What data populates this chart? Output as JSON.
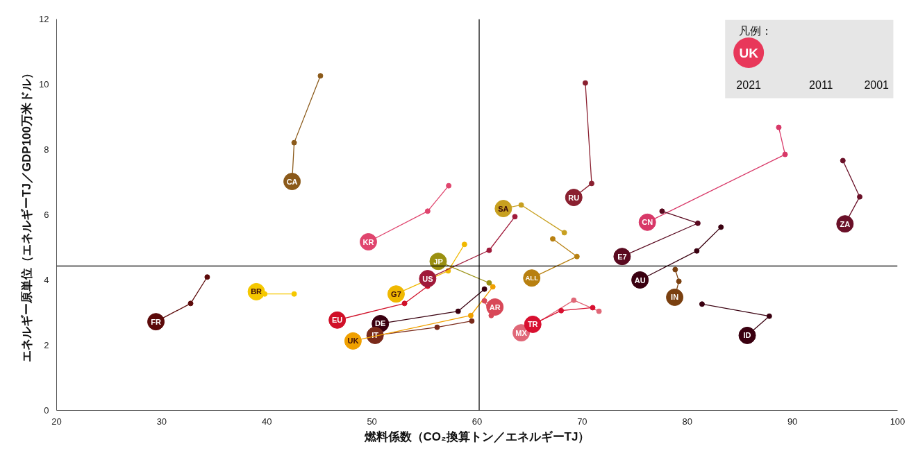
{
  "chart_data": {
    "type": "line",
    "xlabel": "燃料係数（CO₂換算トン／エネルギーTJ）",
    "ylabel": "エネルギー原単位（エネルギーTJ／GDP100万米ドル）",
    "legend_title": "凡例：",
    "annotations": [
      "UK",
      "2021",
      "2011",
      "2001"
    ],
    "xlim": [
      20,
      100
    ],
    "xticks": [
      20,
      30,
      40,
      50,
      60,
      70,
      80,
      90,
      100
    ],
    "ylim": [
      0,
      12
    ],
    "yticks": [
      0,
      2,
      4,
      6,
      8,
      10,
      12
    ],
    "grid": false,
    "marker": "circle",
    "line_style": "solid",
    "ref_lines": [
      {
        "axis": "x",
        "value": 60.2,
        "label": null,
        "color": "#000000"
      },
      {
        "axis": "y",
        "value": 4.43,
        "label": null,
        "color": "#000000"
      }
    ],
    "series": [
      {
        "name": "FR",
        "color": "#5c0a0a",
        "x": [
          29.45,
          32.75,
          34.33
        ],
        "values": [
          2.72,
          3.28,
          4.09
        ]
      },
      {
        "name": "BR",
        "color": "#f5c800",
        "x": [
          39.0,
          39.8,
          42.6
        ],
        "values": [
          3.64,
          3.57,
          3.57
        ]
      },
      {
        "name": "CA",
        "color": "#8b5a1a",
        "x": [
          42.4,
          42.6,
          45.1
        ],
        "values": [
          7.02,
          8.21,
          10.26
        ]
      },
      {
        "name": "KR",
        "color": "#e0456e",
        "x": [
          49.66,
          55.3,
          57.3
        ],
        "values": [
          5.17,
          6.11,
          6.89
        ]
      },
      {
        "name": "EU",
        "color": "#d01028",
        "x": [
          46.7,
          53.1,
          55.3
        ],
        "values": [
          2.77,
          3.28,
          3.81
        ]
      },
      {
        "name": "DE",
        "color": "#3a0010",
        "x": [
          50.8,
          58.2,
          60.7
        ],
        "values": [
          2.66,
          3.04,
          3.72
        ]
      },
      {
        "name": "IT",
        "color": "#7a2a1a",
        "x": [
          50.3,
          56.2,
          59.5
        ],
        "values": [
          2.3,
          2.55,
          2.74
        ]
      },
      {
        "name": "UK",
        "color": "#f0a000",
        "x": [
          48.2,
          59.4,
          61.5
        ],
        "values": [
          2.13,
          2.91,
          3.79
        ]
      },
      {
        "name": "G7",
        "color": "#f0b800",
        "x": [
          52.3,
          57.25,
          58.8
        ],
        "values": [
          3.57,
          4.28,
          5.09
        ]
      },
      {
        "name": "US",
        "color": "#a01a3a",
        "x": [
          55.3,
          61.15,
          63.6
        ],
        "values": [
          4.04,
          4.91,
          5.94
        ]
      },
      {
        "name": "JP",
        "color": "#9a9010",
        "x": [
          56.3,
          61.15,
          null
        ],
        "values": [
          4.57,
          3.91,
          null
        ]
      },
      {
        "name": "AR",
        "color": "#d84858",
        "x": [
          61.7,
          60.7,
          61.35
        ],
        "values": [
          3.17,
          3.36,
          2.91
        ]
      },
      {
        "name": "SA",
        "color": "#c8a020",
        "x": [
          62.5,
          64.2,
          68.3
        ],
        "values": [
          6.19,
          6.3,
          5.45
        ]
      },
      {
        "name": "ALL",
        "color": "#b88010",
        "x": [
          65.2,
          69.5,
          67.2
        ],
        "values": [
          4.06,
          4.72,
          5.26
        ]
      },
      {
        "name": "RU",
        "color": "#8a2030",
        "x": [
          69.2,
          70.9,
          70.3
        ],
        "values": [
          6.53,
          6.96,
          10.04
        ]
      },
      {
        "name": "MX",
        "color": "#e06878",
        "x": [
          64.2,
          69.2,
          71.6
        ],
        "values": [
          2.38,
          3.38,
          3.04
        ]
      },
      {
        "name": "TR",
        "color": "#d81030",
        "x": [
          65.3,
          68.0,
          71.0
        ],
        "values": [
          2.64,
          3.06,
          3.15
        ]
      },
      {
        "name": "CN",
        "color": "#d83868",
        "x": [
          76.2,
          89.3,
          88.7
        ],
        "values": [
          5.77,
          7.85,
          8.68
        ]
      },
      {
        "name": "E7",
        "color": "#5a0a20",
        "x": [
          73.8,
          81.0,
          77.6
        ],
        "values": [
          4.72,
          5.74,
          6.11
        ]
      },
      {
        "name": "AU",
        "color": "#3a0010",
        "x": [
          75.5,
          80.9,
          83.2
        ],
        "values": [
          4.0,
          4.89,
          5.62
        ]
      },
      {
        "name": "IN",
        "color": "#7a4010",
        "x": [
          78.8,
          79.2,
          78.85
        ],
        "values": [
          3.47,
          3.96,
          4.32
        ]
      },
      {
        "name": "ID",
        "color": "#3a0010",
        "x": [
          85.7,
          87.8,
          81.4
        ],
        "values": [
          2.3,
          2.89,
          3.26
        ]
      },
      {
        "name": "ZA",
        "color": "#6a1028",
        "x": [
          95.0,
          96.4,
          94.8
        ],
        "values": [
          5.72,
          6.55,
          7.66
        ]
      }
    ]
  }
}
